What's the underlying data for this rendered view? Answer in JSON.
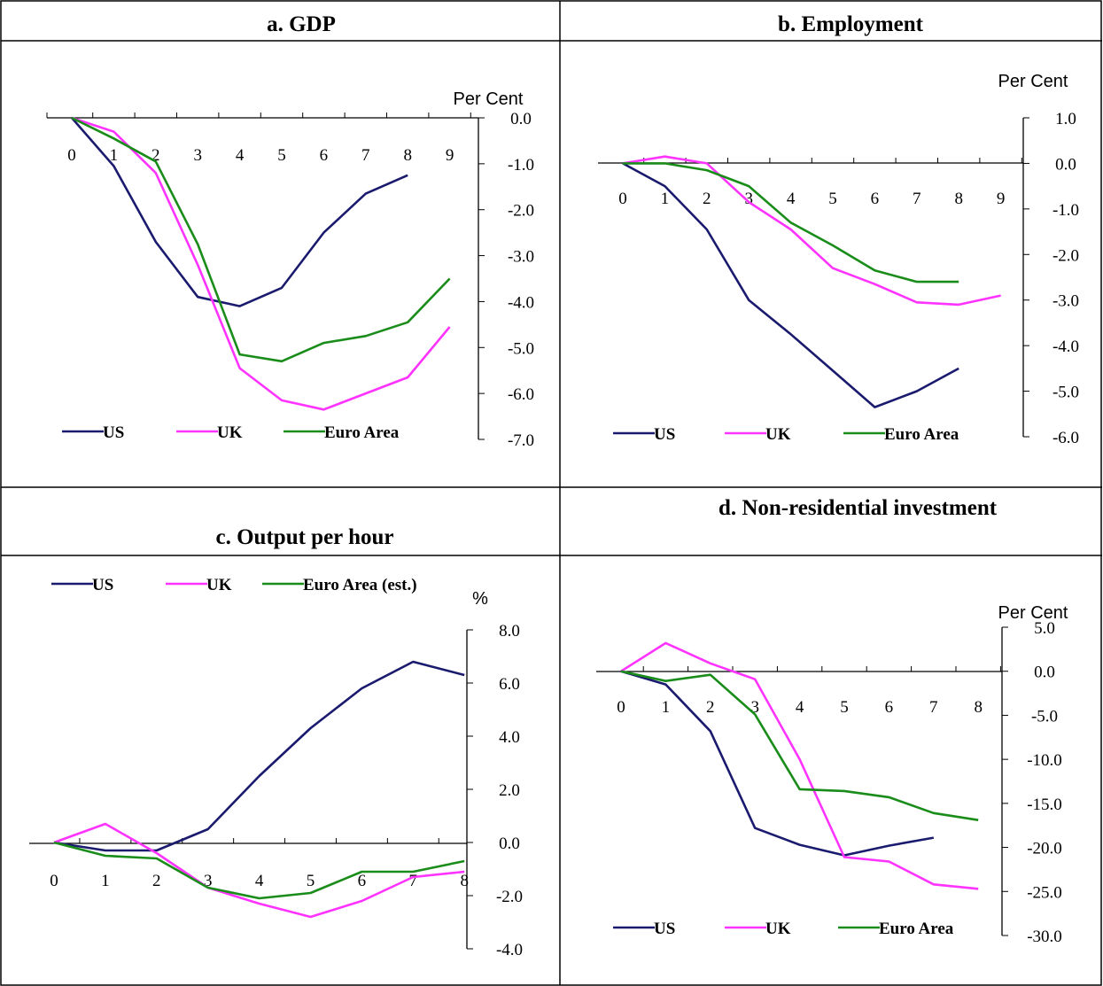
{
  "colors": {
    "US": "#1a1a6e",
    "UK": "#ff33ff",
    "Euro Area": "#1a8c1a"
  },
  "chart_data": [
    {
      "type": "line",
      "title": "a.   GDP",
      "unit_label": "Per Cent",
      "x": [
        0,
        1,
        2,
        3,
        4,
        5,
        6,
        7,
        8,
        9
      ],
      "x_ticks": [
        "0",
        "1",
        "2",
        "3",
        "4",
        "5",
        "6",
        "7",
        "8",
        "9"
      ],
      "y_ticks": [
        "0.0",
        "-1.0",
        "-2.0",
        "-3.0",
        "-4.0",
        "-5.0",
        "-6.0",
        "-7.0"
      ],
      "ylim": [
        -7,
        0
      ],
      "series": [
        {
          "name": "US",
          "values": [
            0,
            -1.05,
            -2.7,
            -3.9,
            -4.1,
            -3.7,
            -2.5,
            -1.65,
            -1.25,
            null
          ]
        },
        {
          "name": "UK",
          "values": [
            0,
            -0.3,
            -1.2,
            -3.2,
            -5.45,
            -6.15,
            -6.35,
            -6.0,
            -5.65,
            -4.55
          ]
        },
        {
          "name": "Euro Area",
          "values": [
            0,
            -0.45,
            -0.95,
            -2.75,
            -5.15,
            -5.3,
            -4.9,
            -4.75,
            -4.45,
            -3.5
          ]
        }
      ],
      "legend": [
        "US",
        "UK",
        "Euro Area"
      ],
      "legend_position": "bottom"
    },
    {
      "type": "line",
      "title": "b.   Employment",
      "unit_label": "Per Cent",
      "x": [
        0,
        1,
        2,
        3,
        4,
        5,
        6,
        7,
        8,
        9
      ],
      "x_ticks": [
        "0",
        "1",
        "2",
        "3",
        "4",
        "5",
        "6",
        "7",
        "8",
        "9"
      ],
      "y_ticks": [
        "1.0",
        "0.0",
        "-1.0",
        "-2.0",
        "-3.0",
        "-4.0",
        "-5.0",
        "-6.0"
      ],
      "ylim": [
        -6,
        1
      ],
      "series": [
        {
          "name": "US",
          "values": [
            0,
            -0.5,
            -1.45,
            -3.0,
            -3.75,
            -4.55,
            -5.35,
            -5.0,
            -4.5,
            null
          ]
        },
        {
          "name": "UK",
          "values": [
            0,
            0.15,
            0.0,
            -0.85,
            -1.45,
            -2.3,
            -2.65,
            -3.05,
            -3.1,
            -2.9
          ]
        },
        {
          "name": "Euro Area",
          "values": [
            0,
            0.0,
            -0.15,
            -0.5,
            -1.3,
            -1.8,
            -2.35,
            -2.6,
            -2.6,
            null
          ]
        }
      ],
      "legend": [
        "US",
        "UK",
        "Euro Area"
      ],
      "legend_position": "bottom"
    },
    {
      "type": "line",
      "title": "c.   Output per hour",
      "unit_label": "%",
      "x": [
        0,
        1,
        2,
        3,
        4,
        5,
        6,
        7,
        8
      ],
      "x_ticks": [
        "0",
        "1",
        "2",
        "3",
        "4",
        "5",
        "6",
        "7",
        "8"
      ],
      "y_ticks": [
        "8.0",
        "6.0",
        "4.0",
        "2.0",
        "0.0",
        "-2.0",
        "-4.0"
      ],
      "ylim": [
        -4,
        8
      ],
      "series": [
        {
          "name": "US",
          "values": [
            0,
            -0.3,
            -0.3,
            0.5,
            2.5,
            4.3,
            5.8,
            6.8,
            6.3
          ]
        },
        {
          "name": "UK",
          "values": [
            0,
            0.7,
            -0.4,
            -1.7,
            -2.3,
            -2.8,
            -2.2,
            -1.3,
            -1.1
          ]
        },
        {
          "name": "Euro Area (est.)",
          "values": [
            0,
            -0.5,
            -0.6,
            -1.7,
            -2.1,
            -1.9,
            -1.1,
            -1.1,
            -0.7
          ]
        }
      ],
      "legend": [
        "US",
        "UK",
        "Euro Area  (est.)"
      ],
      "legend_position": "top"
    },
    {
      "type": "line",
      "title": "d.   Non-residential investment",
      "unit_label": "Per Cent",
      "x": [
        0,
        1,
        2,
        3,
        4,
        5,
        6,
        7,
        8
      ],
      "x_ticks": [
        "0",
        "1",
        "2",
        "3",
        "4",
        "5",
        "6",
        "7",
        "8"
      ],
      "y_ticks": [
        "5.0",
        "0.0",
        "-5.0",
        "-10.0",
        "-15.0",
        "-20.0",
        "-25.0",
        "-30.0"
      ],
      "ylim": [
        -30,
        5
      ],
      "series": [
        {
          "name": "US",
          "values": [
            0,
            -1.5,
            -6.8,
            -17.8,
            -19.7,
            -20.9,
            -19.8,
            -18.9,
            null
          ]
        },
        {
          "name": "UK",
          "values": [
            0,
            3.2,
            0.9,
            -0.9,
            -10.0,
            -21.1,
            -21.6,
            -24.2,
            -24.7
          ]
        },
        {
          "name": "Euro Area",
          "values": [
            0,
            -1.1,
            -0.4,
            -4.9,
            -13.4,
            -13.6,
            -14.3,
            -16.1,
            -16.9
          ]
        }
      ],
      "legend": [
        "US",
        "UK",
        "Euro Area"
      ],
      "legend_position": "bottom"
    }
  ]
}
